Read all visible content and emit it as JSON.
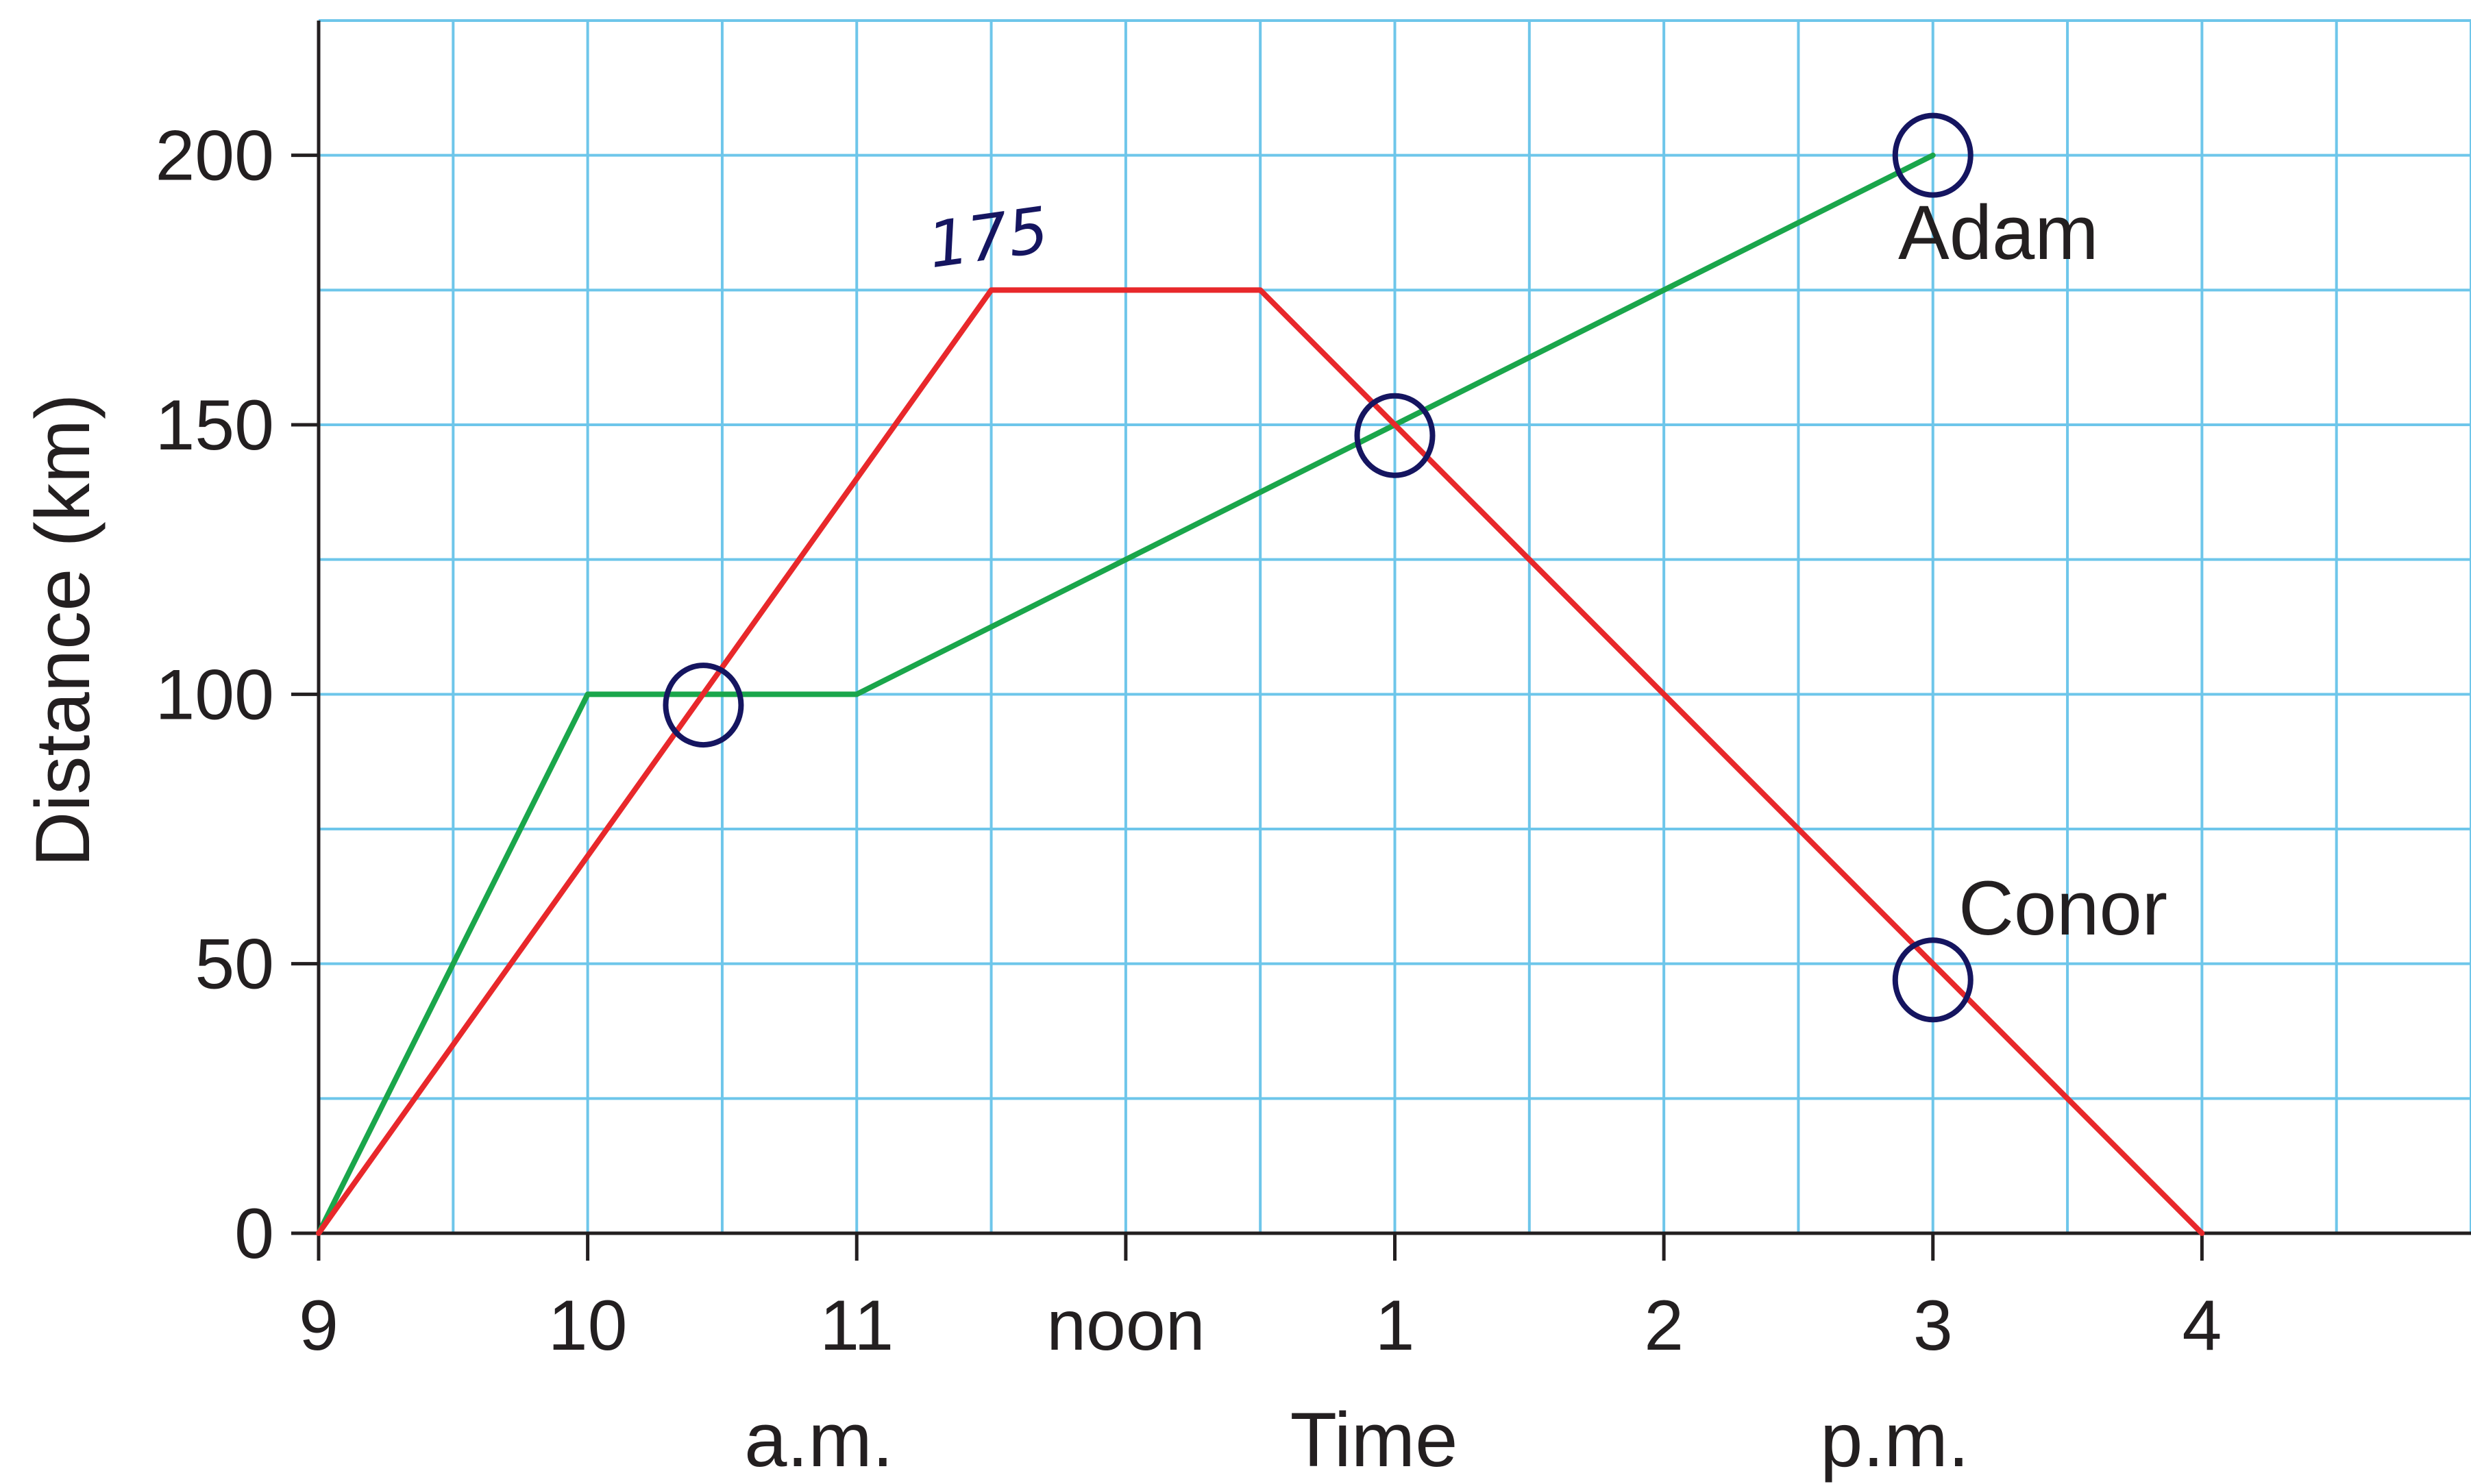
{
  "chart_data": {
    "type": "line",
    "title": "",
    "xlabel": "Time",
    "ylabel": "Distance (km)",
    "x_ticks": [
      {
        "value": 9,
        "label": "9"
      },
      {
        "value": 10,
        "label": "10"
      },
      {
        "value": 11,
        "label": "11"
      },
      {
        "value": 12,
        "label": "noon"
      },
      {
        "value": 13,
        "label": "1"
      },
      {
        "value": 14,
        "label": "2"
      },
      {
        "value": 15,
        "label": "3"
      },
      {
        "value": 16,
        "label": "4"
      }
    ],
    "x_period_labels": {
      "am": "a.m.",
      "pm": "p.m."
    },
    "xlim": [
      9,
      17
    ],
    "ylim": [
      0,
      225
    ],
    "y_ticks": [
      0,
      50,
      100,
      150,
      200
    ],
    "grid": true,
    "series": [
      {
        "name": "Adam",
        "color": "#1aa64b",
        "points": [
          [
            9,
            0
          ],
          [
            10,
            100
          ],
          [
            11,
            100
          ],
          [
            15,
            200
          ]
        ]
      },
      {
        "name": "Conor",
        "color": "#e8282b",
        "points": [
          [
            9,
            0
          ],
          [
            11.5,
            175
          ],
          [
            12.5,
            175
          ],
          [
            16,
            0
          ]
        ]
      }
    ],
    "annotations": [
      {
        "type": "text",
        "text": "175",
        "x": 11.5,
        "y": 175,
        "style": "handwritten"
      },
      {
        "type": "circle",
        "x": 10.43,
        "y": 98
      },
      {
        "type": "circle",
        "x": 13,
        "y": 148
      },
      {
        "type": "circle",
        "x": 15,
        "y": 200
      },
      {
        "type": "circle",
        "x": 15,
        "y": 47
      }
    ],
    "colors": {
      "grid": "#6ec6ea",
      "axis": "#231f20",
      "annotation": "#151560"
    }
  }
}
